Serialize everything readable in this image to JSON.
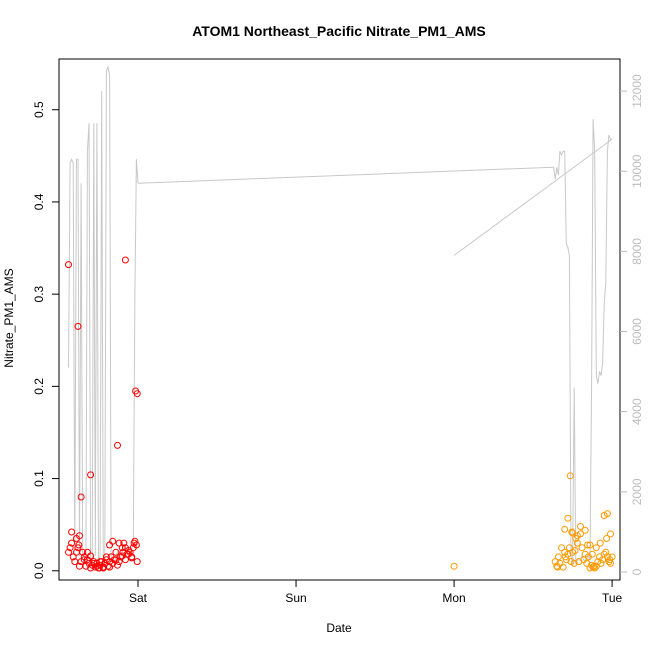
{
  "chart_data": {
    "type": "scatter",
    "title": "ATOM1 Northeast_Pacific Nitrate_PM1_AMS",
    "xlabel": "Date",
    "ylabel": "Nitrate_PM1_AMS",
    "x_ticks": [
      "Sat",
      "Sun",
      "Mon",
      "Tue"
    ],
    "x_tick_positions_days": [
      1,
      2,
      3,
      4
    ],
    "xlim_days": [
      0.5,
      4.05
    ],
    "ylim": [
      -0.01,
      0.555
    ],
    "y_ticks": [
      0.0,
      0.1,
      0.2,
      0.3,
      0.4,
      0.5
    ],
    "y_tick_labels": [
      "0.0",
      "0.1",
      "0.2",
      "0.3",
      "0.4",
      "0.5"
    ],
    "y2lim": [
      -200,
      12800
    ],
    "y2_ticks": [
      0,
      2000,
      4000,
      6000,
      8000,
      10000,
      12000
    ],
    "y2_tick_labels": [
      "0",
      "2000",
      "4000",
      "6000",
      "8000",
      "10000",
      "12000"
    ],
    "colors": {
      "series_red": "#ff0000",
      "series_orange": "#ff9a00",
      "altitude_line": "#c8c8c8",
      "axis": "#000000",
      "right_axis": "#bdbdbd"
    },
    "series": [
      {
        "color": "#ff0000",
        "x": [
          0.56,
          0.57,
          0.58,
          0.59,
          0.6,
          0.61,
          0.62,
          0.625,
          0.63,
          0.64,
          0.65,
          0.66,
          0.67,
          0.68,
          0.69,
          0.7,
          0.71,
          0.72,
          0.73,
          0.74,
          0.75,
          0.76,
          0.77,
          0.78,
          0.79,
          0.8,
          0.81,
          0.82,
          0.83,
          0.84,
          0.85,
          0.86,
          0.87,
          0.88,
          0.89,
          0.9,
          0.905,
          0.91,
          0.92,
          0.93,
          0.94,
          0.95,
          0.96,
          0.97,
          0.975,
          0.98,
          0.99,
          0.995,
          0.58,
          0.61,
          0.63,
          0.66,
          0.68,
          0.7,
          0.72,
          0.74,
          0.76,
          0.78,
          0.8,
          0.82,
          0.84,
          0.86,
          0.88,
          0.9,
          0.92,
          0.94,
          0.96,
          0.56,
          0.62,
          0.64,
          0.7,
          0.755,
          0.82,
          0.87,
          0.92,
          0.985,
          0.995
        ],
        "y": [
          0.02,
          0.025,
          0.03,
          0.015,
          0.01,
          0.02,
          0.025,
          0.028,
          0.005,
          0.01,
          0.02,
          0.015,
          0.005,
          0.012,
          0.008,
          0.003,
          0.006,
          0.01,
          0.004,
          0.008,
          0.003,
          0.006,
          0.01,
          0.004,
          0.008,
          0.012,
          0.005,
          0.01,
          0.015,
          0.008,
          0.012,
          0.02,
          0.006,
          0.01,
          0.015,
          0.025,
          0.02,
          0.03,
          0.012,
          0.018,
          0.022,
          0.02,
          0.015,
          0.025,
          0.03,
          0.032,
          0.028,
          0.01,
          0.042,
          0.035,
          0.038,
          0.012,
          0.02,
          0.016,
          0.008,
          0.005,
          0.01,
          0.003,
          0.015,
          0.028,
          0.032,
          0.012,
          0.03,
          0.016,
          0.025,
          0.018,
          0.014,
          0.332,
          0.265,
          0.08,
          0.104,
          0.003,
          0.004,
          0.136,
          0.337,
          0.195,
          0.192
        ]
      },
      {
        "color": "#ff9a00",
        "x": [
          3.0,
          3.64,
          3.65,
          3.66,
          3.67,
          3.68,
          3.69,
          3.7,
          3.71,
          3.72,
          3.73,
          3.74,
          3.75,
          3.76,
          3.77,
          3.78,
          3.79,
          3.8,
          3.81,
          3.82,
          3.83,
          3.84,
          3.85,
          3.86,
          3.87,
          3.88,
          3.89,
          3.9,
          3.91,
          3.92,
          3.93,
          3.94,
          3.95,
          3.96,
          3.97,
          3.98,
          3.99,
          4.0,
          3.7,
          3.72,
          3.75,
          3.78,
          3.8,
          3.83,
          3.86,
          3.9,
          3.95,
          3.97,
          3.99,
          3.655,
          3.735,
          3.765,
          3.845,
          3.885,
          3.925,
          3.965,
          3.985,
          3.745,
          3.705,
          3.875
        ],
        "y": [
          0.005,
          0.01,
          0.005,
          0.015,
          0.008,
          0.025,
          0.004,
          0.02,
          0.012,
          0.018,
          0.025,
          0.01,
          0.02,
          0.008,
          0.035,
          0.03,
          0.01,
          0.04,
          0.025,
          0.012,
          0.018,
          0.008,
          0.015,
          0.003,
          0.006,
          0.004,
          0.003,
          0.005,
          0.01,
          0.015,
          0.008,
          0.012,
          0.018,
          0.02,
          0.015,
          0.01,
          0.008,
          0.015,
          0.045,
          0.057,
          0.041,
          0.038,
          0.048,
          0.044,
          0.028,
          0.025,
          0.06,
          0.062,
          0.04,
          0.004,
          0.103,
          0.022,
          0.028,
          0.005,
          0.03,
          0.035,
          0.012,
          0.042,
          0.015,
          0.018
        ]
      }
    ],
    "altitude_line": {
      "color": "#c8c8c8",
      "x": [
        0.56,
        0.57,
        0.58,
        0.59,
        0.6,
        0.61,
        0.62,
        0.63,
        0.64,
        0.65,
        0.66,
        0.67,
        0.68,
        0.69,
        0.7,
        0.71,
        0.72,
        0.73,
        0.74,
        0.75,
        0.76,
        0.77,
        0.78,
        0.79,
        0.8,
        0.81,
        0.82,
        0.83,
        0.84,
        0.85,
        0.86,
        0.87,
        0.88,
        0.89,
        0.9,
        0.91,
        0.92,
        0.93,
        0.94,
        0.95,
        0.96,
        0.97,
        0.98,
        0.99,
        1.0,
        3.63,
        3.64,
        3.65,
        3.66,
        3.67,
        3.68,
        3.69,
        3.7,
        3.71,
        3.72,
        3.73,
        3.74,
        3.75,
        3.76,
        3.77,
        3.78,
        3.79,
        3.8,
        3.81,
        3.82,
        3.83,
        3.84,
        3.85,
        3.86,
        3.87,
        3.88,
        3.89,
        3.9,
        3.91,
        3.92,
        3.93,
        3.94,
        3.95,
        3.96,
        3.97,
        3.98,
        3.99,
        4.0
      ],
      "y": [
        5100,
        10200,
        10300,
        10200,
        400,
        10300,
        10300,
        400,
        9700,
        400,
        400,
        200,
        10500,
        11200,
        400,
        200,
        11200,
        400,
        11200,
        300,
        400,
        12000,
        400,
        300,
        12500,
        12600,
        12400,
        400,
        300,
        200,
        400,
        500,
        300,
        400,
        500,
        600,
        500,
        500,
        600,
        500,
        600,
        700,
        6900,
        10300,
        9700,
        10100,
        9800,
        10100,
        9900,
        10500,
        10400,
        10500,
        10500,
        8200,
        8100,
        7900,
        400,
        200,
        4600,
        200,
        300,
        300,
        300,
        400,
        300,
        300,
        300,
        400,
        300,
        4700,
        11300,
        10500,
        4900,
        4700,
        5000,
        4900,
        5200,
        6700,
        7200,
        10500,
        10900,
        10800,
        10800
      ]
    }
  }
}
